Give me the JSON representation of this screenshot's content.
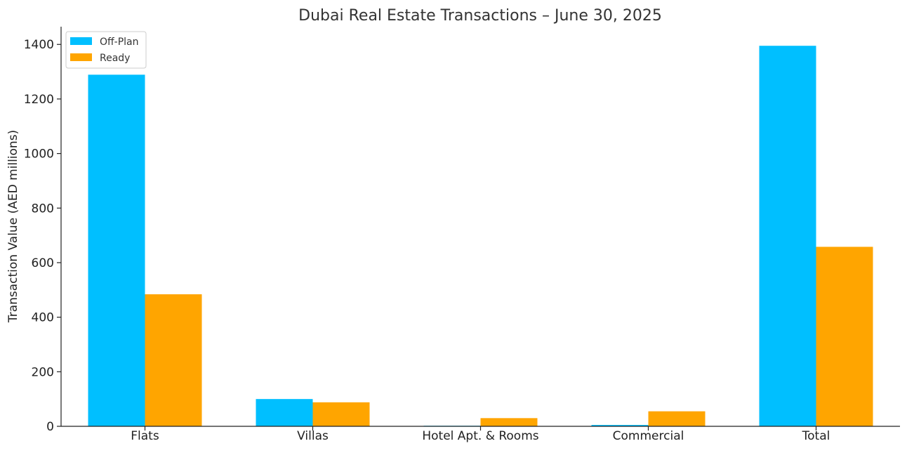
{
  "chart_data": {
    "type": "bar",
    "title": "Dubai Real Estate Transactions – June 30, 2025",
    "xlabel": "",
    "ylabel": "Transaction Value (AED millions)",
    "categories": [
      "Flats",
      "Villas",
      "Hotel Apt. & Rooms",
      "Commercial",
      "Total"
    ],
    "series": [
      {
        "name": "Off-Plan",
        "color": "#00BFFF",
        "values": [
          1289,
          100,
          1,
          5,
          1395
        ]
      },
      {
        "name": "Ready",
        "color": "#FFA500",
        "values": [
          484,
          88,
          30,
          55,
          658
        ]
      }
    ],
    "ylim": [
      0,
      1465
    ],
    "yticks": [
      0,
      200,
      400,
      600,
      800,
      1000,
      1200,
      1400
    ],
    "grid": false,
    "legend_position": "top-left"
  }
}
